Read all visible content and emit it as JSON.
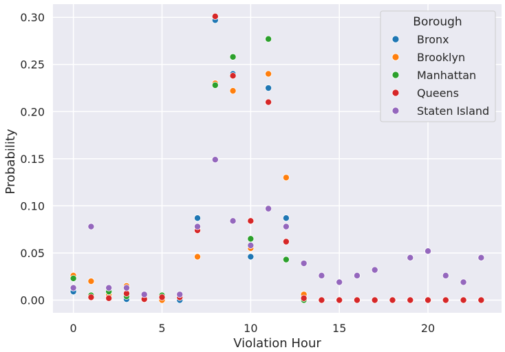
{
  "chart_data": {
    "type": "scatter",
    "xlabel": "Violation Hour",
    "ylabel": "Probability",
    "xlim": [
      -1.15,
      24.15
    ],
    "ylim": [
      -0.0135,
      0.314
    ],
    "x_ticks": [
      0,
      5,
      10,
      15,
      20
    ],
    "y_ticks": [
      "0.00",
      "0.05",
      "0.10",
      "0.15",
      "0.20",
      "0.25",
      "0.30"
    ],
    "grid": true,
    "legend": {
      "title": "Borough",
      "placement": "top-right"
    },
    "series": [
      {
        "name": "Bronx",
        "color": "#1f77b4",
        "points": [
          [
            0,
            0.009
          ],
          [
            1,
            0.005
          ],
          [
            2,
            0.004
          ],
          [
            3,
            0.001
          ],
          [
            4,
            0.001
          ],
          [
            5,
            0.003
          ],
          [
            6,
            0.0
          ],
          [
            7,
            0.087
          ],
          [
            8,
            0.297
          ],
          [
            9,
            0.24
          ],
          [
            10,
            0.046
          ],
          [
            11,
            0.225
          ],
          [
            12,
            0.087
          ],
          [
            13,
            0.001
          ],
          [
            14,
            0.0
          ],
          [
            15,
            0.0
          ],
          [
            16,
            0.0
          ],
          [
            17,
            0.0
          ],
          [
            18,
            0.0
          ],
          [
            19,
            0.0
          ],
          [
            20,
            0.0
          ],
          [
            21,
            0.0
          ],
          [
            22,
            0.0
          ],
          [
            23,
            0.0
          ]
        ]
      },
      {
        "name": "Brooklyn",
        "color": "#ff7f0e",
        "points": [
          [
            0,
            0.026
          ],
          [
            1,
            0.02
          ],
          [
            2,
            0.006
          ],
          [
            3,
            0.015
          ],
          [
            4,
            0.001
          ],
          [
            5,
            0.0
          ],
          [
            6,
            0.004
          ],
          [
            7,
            0.046
          ],
          [
            8,
            0.23
          ],
          [
            9,
            0.222
          ],
          [
            10,
            0.055
          ],
          [
            11,
            0.24
          ],
          [
            12,
            0.13
          ],
          [
            13,
            0.006
          ],
          [
            14,
            0.0
          ],
          [
            15,
            0.0
          ],
          [
            16,
            0.0
          ],
          [
            17,
            0.0
          ],
          [
            18,
            0.0
          ],
          [
            19,
            0.0
          ],
          [
            20,
            0.0
          ],
          [
            21,
            0.0
          ],
          [
            22,
            0.0
          ],
          [
            23,
            0.0
          ]
        ]
      },
      {
        "name": "Manhattan",
        "color": "#2ca02c",
        "points": [
          [
            0,
            0.023
          ],
          [
            1,
            0.005
          ],
          [
            2,
            0.009
          ],
          [
            3,
            0.004
          ],
          [
            4,
            0.001
          ],
          [
            5,
            0.005
          ],
          [
            6,
            0.003
          ],
          [
            7,
            0.077
          ],
          [
            8,
            0.228
          ],
          [
            9,
            0.258
          ],
          [
            10,
            0.065
          ],
          [
            11,
            0.277
          ],
          [
            12,
            0.043
          ],
          [
            13,
            0.0
          ],
          [
            14,
            0.0
          ],
          [
            15,
            0.0
          ],
          [
            16,
            0.0
          ],
          [
            17,
            0.0
          ],
          [
            18,
            0.0
          ],
          [
            19,
            0.0
          ],
          [
            20,
            0.0
          ],
          [
            21,
            0.0
          ],
          [
            22,
            0.0
          ],
          [
            23,
            0.0
          ]
        ]
      },
      {
        "name": "Queens",
        "color": "#d62728",
        "points": [
          [
            0,
            0.013
          ],
          [
            1,
            0.003
          ],
          [
            2,
            0.002
          ],
          [
            3,
            0.007
          ],
          [
            4,
            0.001
          ],
          [
            5,
            0.003
          ],
          [
            6,
            0.003
          ],
          [
            7,
            0.074
          ],
          [
            8,
            0.301
          ],
          [
            9,
            0.238
          ],
          [
            10,
            0.084
          ],
          [
            11,
            0.21
          ],
          [
            12,
            0.062
          ],
          [
            13,
            0.002
          ],
          [
            14,
            0.0
          ],
          [
            15,
            0.0
          ],
          [
            16,
            0.0
          ],
          [
            17,
            0.0
          ],
          [
            18,
            0.0
          ],
          [
            19,
            0.0
          ],
          [
            20,
            0.0
          ],
          [
            21,
            0.0
          ],
          [
            22,
            0.0
          ],
          [
            23,
            0.0
          ]
        ]
      },
      {
        "name": "Staten Island",
        "color": "#9467bd",
        "points": [
          [
            0,
            0.013
          ],
          [
            1,
            0.078
          ],
          [
            2,
            0.013
          ],
          [
            3,
            0.013
          ],
          [
            4,
            0.006
          ],
          [
            6,
            0.006
          ],
          [
            7,
            0.078
          ],
          [
            8,
            0.149
          ],
          [
            9,
            0.084
          ],
          [
            10,
            0.058
          ],
          [
            11,
            0.097
          ],
          [
            12,
            0.078
          ],
          [
            13,
            0.039
          ],
          [
            14,
            0.026
          ],
          [
            15,
            0.019
          ],
          [
            16,
            0.026
          ],
          [
            17,
            0.032
          ],
          [
            19,
            0.045
          ],
          [
            20,
            0.052
          ],
          [
            21,
            0.026
          ],
          [
            22,
            0.019
          ],
          [
            23,
            0.045
          ]
        ]
      }
    ]
  }
}
